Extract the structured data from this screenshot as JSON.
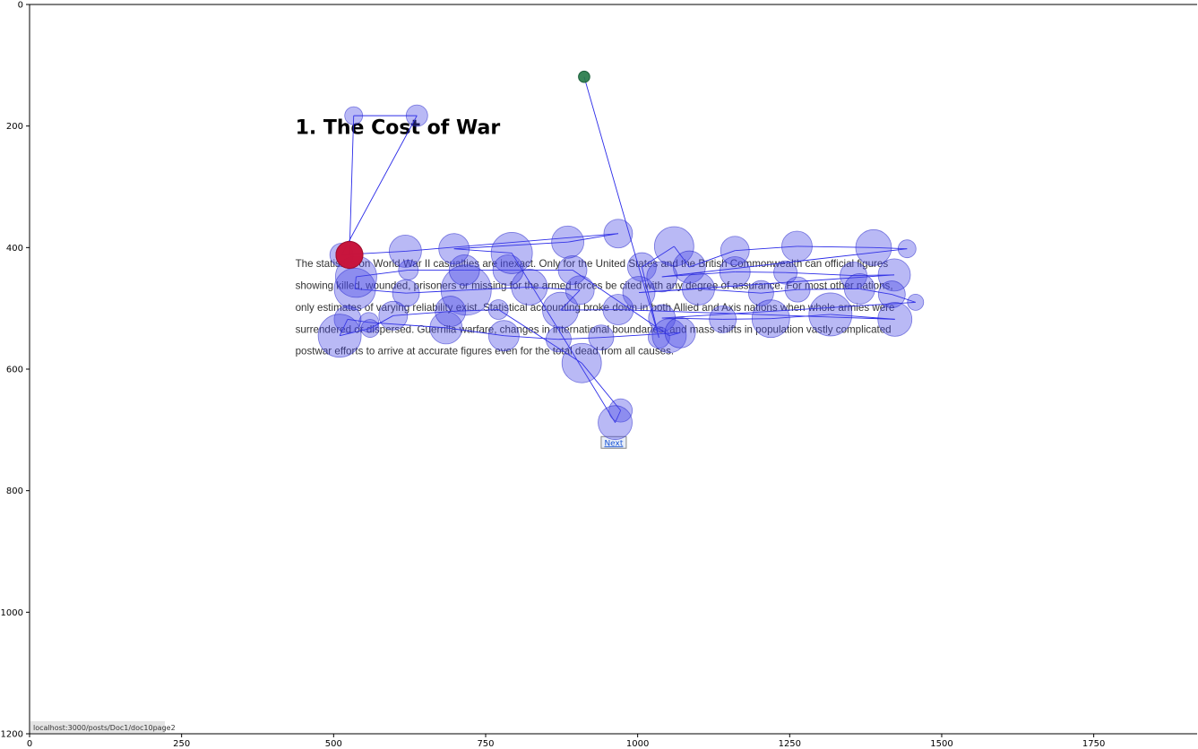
{
  "chart_data": {
    "type": "scatter",
    "xlim": [
      0,
      1920
    ],
    "ylim": [
      1200,
      0
    ],
    "xticks": [
      "0",
      "250",
      "500",
      "750",
      "1000",
      "1250",
      "1500",
      "1750"
    ],
    "xtick_values": [
      0,
      250,
      500,
      750,
      1000,
      1250,
      1500,
      1750
    ],
    "yticks": [
      "0",
      "200",
      "400",
      "600",
      "800",
      "1000",
      "1200"
    ],
    "ytick_values": [
      0,
      200,
      400,
      600,
      800,
      1000,
      1200
    ],
    "grid": false,
    "background_page": {
      "heading": "1. The Cost of War",
      "paragraph_lines": [
        "The statistics on World War II casualties are inexact. Only for the United States and the British Commonwealth can official figures",
        "showing killed, wounded, prisoners or missing for the armed forces be cited with any degree of assurance. For most other nations,",
        "only estimates of varying reliability exist. Statistical accounting broke down in both Allied and Axis nations when whole armies were",
        "surrendered or dispersed. Guerrilla warfare, changes in international boundaries, and mass shifts in population vastly complicated",
        "postwar efforts to arrive at accurate figures even for the total dead from all causes."
      ],
      "next_button": "Next",
      "status_url": "localhost:3000/posts/Doc1/doc10page2"
    },
    "colors": {
      "fixation": "#6a6aee",
      "saccade": "#2a2ae8",
      "first_fixation": "#227846",
      "last_fixation": "#c8143c"
    },
    "fixations": [
      {
        "x": 912,
        "y": 119,
        "r": 9
      },
      {
        "x": 1035,
        "y": 548,
        "r": 12
      },
      {
        "x": 1007,
        "y": 432,
        "r": 16
      },
      {
        "x": 1060,
        "y": 398,
        "r": 22
      },
      {
        "x": 1085,
        "y": 432,
        "r": 18
      },
      {
        "x": 1160,
        "y": 405,
        "r": 16
      },
      {
        "x": 1262,
        "y": 398,
        "r": 17
      },
      {
        "x": 1388,
        "y": 400,
        "r": 20
      },
      {
        "x": 1443,
        "y": 402,
        "r": 10
      },
      {
        "x": 1040,
        "y": 448,
        "r": 17
      },
      {
        "x": 1160,
        "y": 440,
        "r": 17
      },
      {
        "x": 1243,
        "y": 441,
        "r": 13
      },
      {
        "x": 1355,
        "y": 446,
        "r": 15
      },
      {
        "x": 1422,
        "y": 445,
        "r": 18
      },
      {
        "x": 1002,
        "y": 474,
        "r": 18
      },
      {
        "x": 1100,
        "y": 468,
        "r": 18
      },
      {
        "x": 1203,
        "y": 475,
        "r": 14
      },
      {
        "x": 1263,
        "y": 469,
        "r": 14
      },
      {
        "x": 1365,
        "y": 468,
        "r": 17
      },
      {
        "x": 1418,
        "y": 477,
        "r": 15
      },
      {
        "x": 1457,
        "y": 490,
        "r": 9
      },
      {
        "x": 1040,
        "y": 516,
        "r": 15
      },
      {
        "x": 1140,
        "y": 518,
        "r": 15
      },
      {
        "x": 1219,
        "y": 517,
        "r": 21
      },
      {
        "x": 1317,
        "y": 510,
        "r": 24
      },
      {
        "x": 1423,
        "y": 518,
        "r": 19
      },
      {
        "x": 968,
        "y": 502,
        "r": 17
      },
      {
        "x": 873,
        "y": 503,
        "r": 20
      },
      {
        "x": 905,
        "y": 470,
        "r": 16
      },
      {
        "x": 822,
        "y": 465,
        "r": 20
      },
      {
        "x": 718,
        "y": 470,
        "r": 28
      },
      {
        "x": 619,
        "y": 475,
        "r": 15
      },
      {
        "x": 535,
        "y": 468,
        "r": 23
      },
      {
        "x": 537,
        "y": 448,
        "r": 23
      },
      {
        "x": 623,
        "y": 437,
        "r": 11
      },
      {
        "x": 715,
        "y": 437,
        "r": 17
      },
      {
        "x": 787,
        "y": 437,
        "r": 17
      },
      {
        "x": 893,
        "y": 437,
        "r": 16
      },
      {
        "x": 1052,
        "y": 545,
        "r": 19
      },
      {
        "x": 1070,
        "y": 540,
        "r": 17
      },
      {
        "x": 940,
        "y": 548,
        "r": 14
      },
      {
        "x": 870,
        "y": 551,
        "r": 14
      },
      {
        "x": 780,
        "y": 545,
        "r": 17
      },
      {
        "x": 685,
        "y": 532,
        "r": 18
      },
      {
        "x": 558,
        "y": 523,
        "r": 11
      },
      {
        "x": 523,
        "y": 518,
        "r": 15
      },
      {
        "x": 510,
        "y": 545,
        "r": 24
      },
      {
        "x": 560,
        "y": 533,
        "r": 10
      },
      {
        "x": 598,
        "y": 512,
        "r": 16
      },
      {
        "x": 692,
        "y": 505,
        "r": 17
      },
      {
        "x": 771,
        "y": 502,
        "r": 11
      },
      {
        "x": 908,
        "y": 590,
        "r": 22
      },
      {
        "x": 972,
        "y": 668,
        "r": 13
      },
      {
        "x": 963,
        "y": 688,
        "r": 19
      },
      {
        "x": 793,
        "y": 409,
        "r": 23
      },
      {
        "x": 698,
        "y": 402,
        "r": 17
      },
      {
        "x": 885,
        "y": 391,
        "r": 18
      },
      {
        "x": 968,
        "y": 377,
        "r": 16
      },
      {
        "x": 618,
        "y": 406,
        "r": 18
      },
      {
        "x": 513,
        "y": 412,
        "r": 13
      },
      {
        "x": 637,
        "y": 183,
        "r": 12
      },
      {
        "x": 533,
        "y": 183,
        "r": 10
      },
      {
        "x": 526,
        "y": 412,
        "r": 15
      }
    ]
  }
}
